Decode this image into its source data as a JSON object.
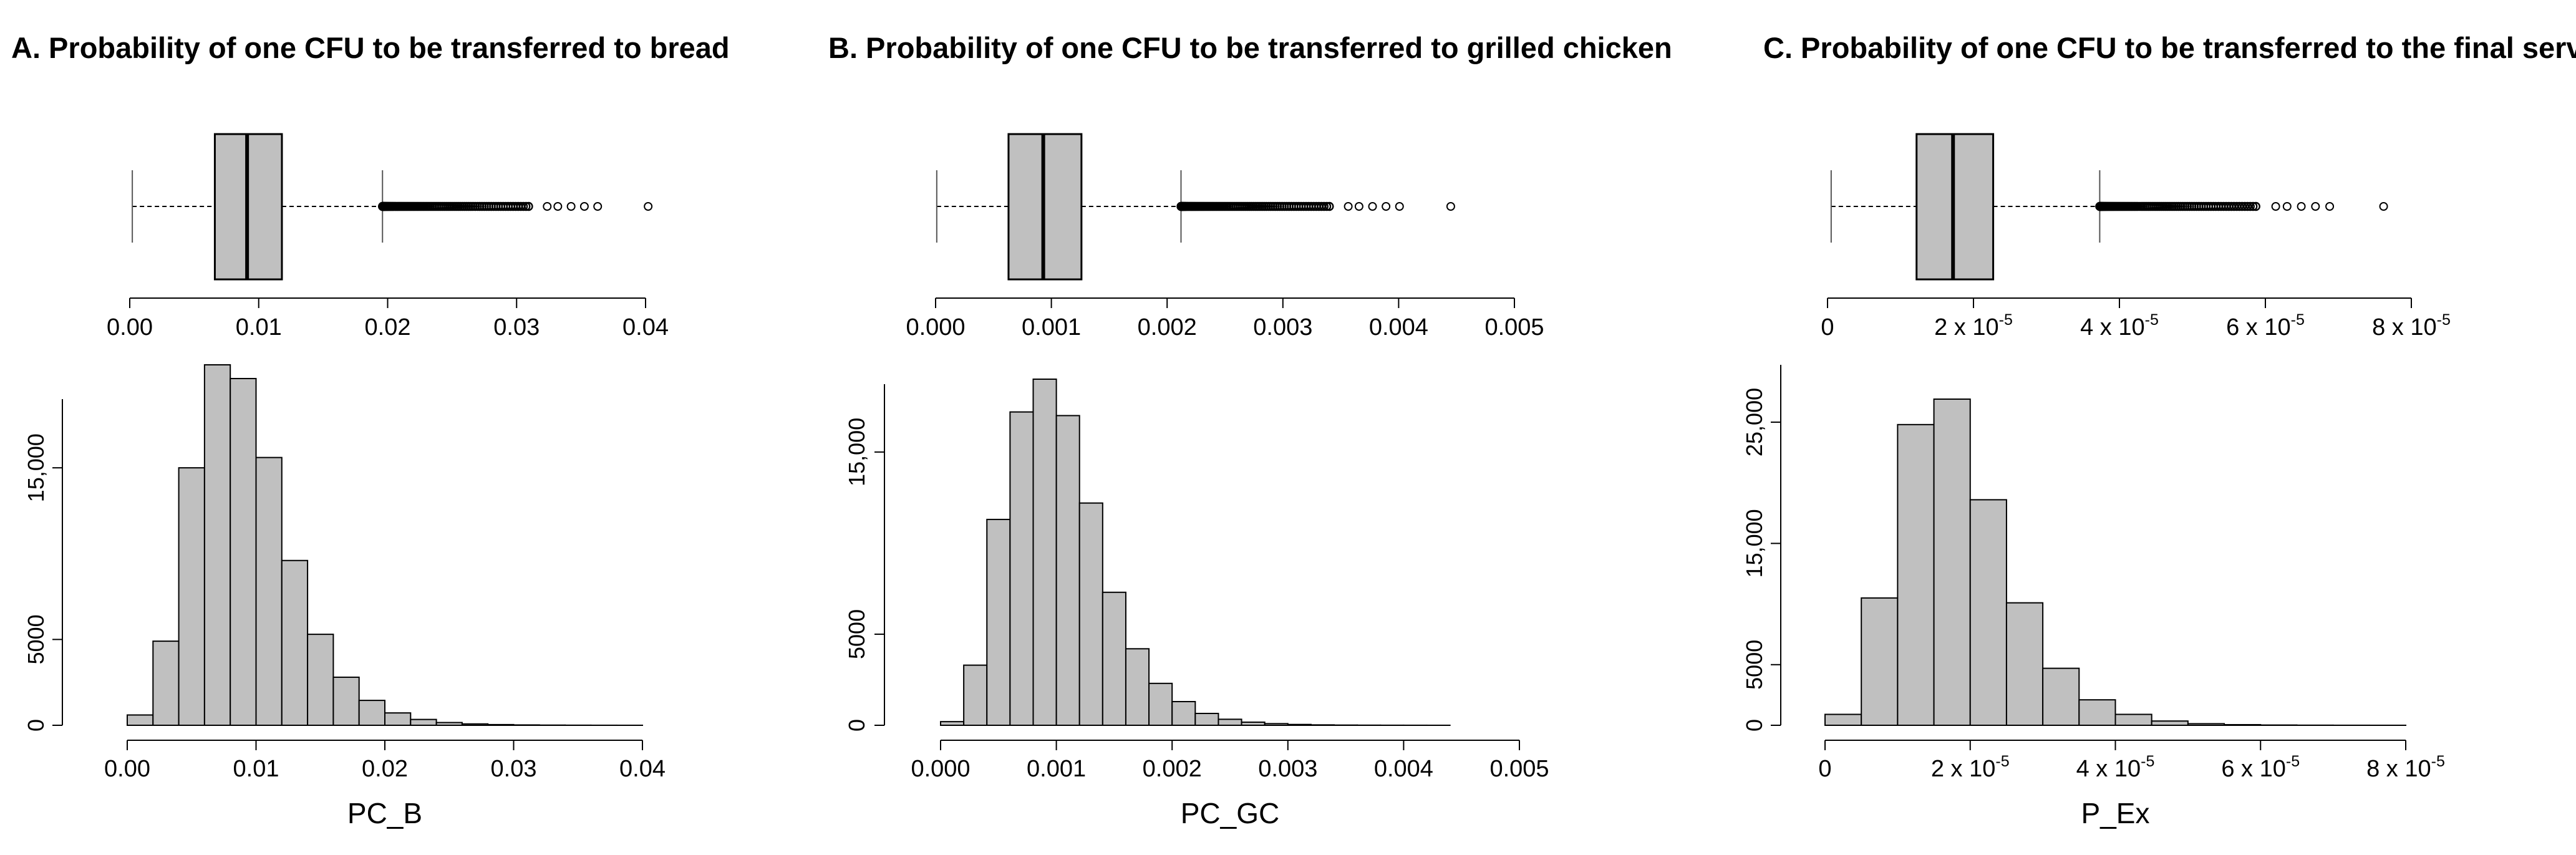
{
  "colors": {
    "fill": "#c0c0c0",
    "stroke": "#000000",
    "background": "#ffffff"
  },
  "chart_data": [
    {
      "type": "boxplot+histogram",
      "title": "A. Probability of one CFU to be transferred to bread",
      "xlabel": "PC_B",
      "xlim": [
        0,
        0.04
      ],
      "box_ticks": [
        "0.00",
        "0.01",
        "0.02",
        "0.03",
        "0.04"
      ],
      "box_tick_values": [
        0,
        0.01,
        0.02,
        0.03,
        0.04
      ],
      "hist_ticks": [
        "0.00",
        "0.01",
        "0.02",
        "0.03",
        "0.04"
      ],
      "hist_tick_values": [
        0,
        0.01,
        0.02,
        0.03,
        0.04
      ],
      "boxplot": {
        "whisker_low": 0.0002,
        "q1": 0.0066,
        "median": 0.0091,
        "q3": 0.0118,
        "whisker_high": 0.0196,
        "outlier_max": 0.0402
      },
      "hist": {
        "bin_edges": [
          0,
          0.002,
          0.004,
          0.006,
          0.008,
          0.01,
          0.012,
          0.014,
          0.016,
          0.018,
          0.02,
          0.022,
          0.024,
          0.026,
          0.028,
          0.03,
          0.032,
          0.034,
          0.036,
          0.038,
          0.04
        ],
        "counts": [
          600,
          4900,
          15000,
          21000,
          20200,
          15600,
          9600,
          5300,
          2800,
          1450,
          720,
          340,
          160,
          80,
          40,
          20,
          10,
          5,
          2,
          1
        ],
        "ylim": [
          0,
          21000
        ],
        "yticks": [
          "0",
          "5000",
          "15,000"
        ],
        "ytick_values": [
          0,
          5000,
          15000
        ]
      }
    },
    {
      "type": "boxplot+histogram",
      "title": "B. Probability of one CFU to be transferred to grilled chicken",
      "xlabel": "PC_GC",
      "xlim": [
        0,
        0.005
      ],
      "box_ticks": [
        "0.000",
        "0.001",
        "0.002",
        "0.003",
        "0.004",
        "0.005"
      ],
      "box_tick_values": [
        0,
        0.001,
        0.002,
        0.003,
        0.004,
        0.005
      ],
      "hist_ticks": [
        "0.000",
        "0.001",
        "0.002",
        "0.003",
        "0.004",
        "0.005"
      ],
      "hist_tick_values": [
        0,
        0.001,
        0.002,
        0.003,
        0.004,
        0.005
      ],
      "boxplot": {
        "whisker_low": 1e-05,
        "q1": 0.00063,
        "median": 0.00093,
        "q3": 0.00126,
        "whisker_high": 0.00212,
        "outlier_max": 0.00445
      },
      "hist": {
        "bin_edges": [
          0,
          0.0002,
          0.0004,
          0.0006,
          0.0008,
          0.001,
          0.0012,
          0.0014,
          0.0016,
          0.0018,
          0.002,
          0.0022,
          0.0024,
          0.0026,
          0.0028,
          0.003,
          0.0032,
          0.0034,
          0.0036,
          0.0038,
          0.004,
          0.0042,
          0.0044
        ],
        "counts": [
          200,
          3300,
          11300,
          17200,
          19000,
          17000,
          12200,
          7300,
          4200,
          2300,
          1300,
          650,
          330,
          170,
          90,
          45,
          22,
          11,
          6,
          3,
          2,
          1
        ],
        "ylim": [
          0,
          19000
        ],
        "yticks": [
          "0",
          "5000",
          "15,000"
        ],
        "ytick_values": [
          0,
          5000,
          15000
        ]
      }
    },
    {
      "type": "boxplot+histogram",
      "title": "C. Probability of one CFU to be transferred to the final serving",
      "xlabel": "P_Ex",
      "xlim": [
        0,
        8e-05
      ],
      "box_ticks": [
        {
          "mant": "0",
          "exp": ""
        },
        {
          "mant": "2 x 10",
          "exp": "-5"
        },
        {
          "mant": "4 x 10",
          "exp": "-5"
        },
        {
          "mant": "6 x 10",
          "exp": "-5"
        },
        {
          "mant": "8 x 10",
          "exp": "-5"
        }
      ],
      "box_tick_values": [
        0,
        2e-05,
        4e-05,
        6e-05,
        8e-05
      ],
      "hist_ticks": [
        {
          "mant": "0",
          "exp": ""
        },
        {
          "mant": "2 x 10",
          "exp": "-5"
        },
        {
          "mant": "4 x 10",
          "exp": "-5"
        },
        {
          "mant": "6 x 10",
          "exp": "-5"
        },
        {
          "mant": "8 x 10",
          "exp": "-5"
        }
      ],
      "hist_tick_values": [
        0,
        2e-05,
        4e-05,
        6e-05,
        8e-05
      ],
      "boxplot": {
        "whisker_low": 5e-07,
        "q1": 1.22e-05,
        "median": 1.72e-05,
        "q3": 2.27e-05,
        "whisker_high": 3.73e-05,
        "outlier_max": 7.62e-05
      },
      "hist": {
        "bin_edges": [
          0,
          5e-06,
          1e-05,
          1.5e-05,
          2e-05,
          2.5e-05,
          3e-05,
          3.5e-05,
          4e-05,
          4.5e-05,
          5e-05,
          5.5e-05,
          6e-05,
          6.5e-05,
          7e-05,
          7.5e-05,
          8e-05
        ],
        "counts": [
          900,
          10500,
          24800,
          26900,
          18600,
          10100,
          4700,
          2100,
          900,
          350,
          130,
          50,
          20,
          8,
          3,
          1
        ],
        "ylim": [
          0,
          30000
        ],
        "yticks": [
          "0",
          "5000",
          "15,000",
          "25,000"
        ],
        "ytick_values": [
          0,
          5000,
          15000,
          25000
        ]
      }
    }
  ]
}
